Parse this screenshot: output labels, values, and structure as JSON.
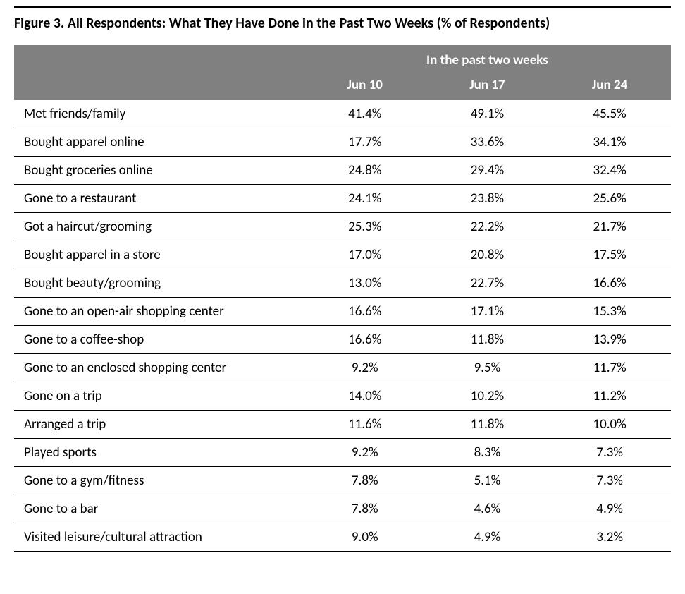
{
  "title": "Figure 3. All Respondents: What They Have Done in the Past Two Weeks (% of Respondents)",
  "table": {
    "type": "table",
    "spanner": "In the past two weeks",
    "columns": [
      "Jun 10",
      "Jun 17",
      "Jun 24"
    ],
    "header_bg": "#808080",
    "header_text_color": "#ffffff",
    "row_border_color": "#000000",
    "background_color": "#ffffff",
    "title_fontsize": 20,
    "cell_fontsize": 19,
    "rows": [
      {
        "label": "Met friends/family",
        "values": [
          "41.4%",
          "49.1%",
          "45.5%"
        ]
      },
      {
        "label": "Bought apparel online",
        "values": [
          "17.7%",
          "33.6%",
          "34.1%"
        ]
      },
      {
        "label": "Bought groceries online",
        "values": [
          "24.8%",
          "29.4%",
          "32.4%"
        ]
      },
      {
        "label": "Gone to a restaurant",
        "values": [
          "24.1%",
          "23.8%",
          "25.6%"
        ]
      },
      {
        "label": "Got a haircut/grooming",
        "values": [
          "25.3%",
          "22.2%",
          "21.7%"
        ]
      },
      {
        "label": "Bought apparel in a store",
        "values": [
          "17.0%",
          "20.8%",
          "17.5%"
        ]
      },
      {
        "label": "Bought beauty/grooming",
        "values": [
          "13.0%",
          "22.7%",
          "16.6%"
        ]
      },
      {
        "label": "Gone to an open-air shopping center",
        "values": [
          "16.6%",
          "17.1%",
          "15.3%"
        ]
      },
      {
        "label": "Gone to a coffee-shop",
        "values": [
          "16.6%",
          "11.8%",
          "13.9%"
        ]
      },
      {
        "label": "Gone to an enclosed shopping center",
        "values": [
          "9.2%",
          "9.5%",
          "11.7%"
        ]
      },
      {
        "label": "Gone on a trip",
        "values": [
          "14.0%",
          "10.2%",
          "11.2%"
        ]
      },
      {
        "label": "Arranged a trip",
        "values": [
          "11.6%",
          "11.8%",
          "10.0%"
        ]
      },
      {
        "label": "Played sports",
        "values": [
          "9.2%",
          "8.3%",
          "7.3%"
        ]
      },
      {
        "label": "Gone to a gym/fitness",
        "values": [
          "7.8%",
          "5.1%",
          "7.3%"
        ]
      },
      {
        "label": "Gone to a bar",
        "values": [
          "7.8%",
          "4.6%",
          "4.9%"
        ]
      },
      {
        "label": "Visited leisure/cultural attraction",
        "values": [
          "9.0%",
          "4.9%",
          "3.2%"
        ]
      }
    ]
  }
}
